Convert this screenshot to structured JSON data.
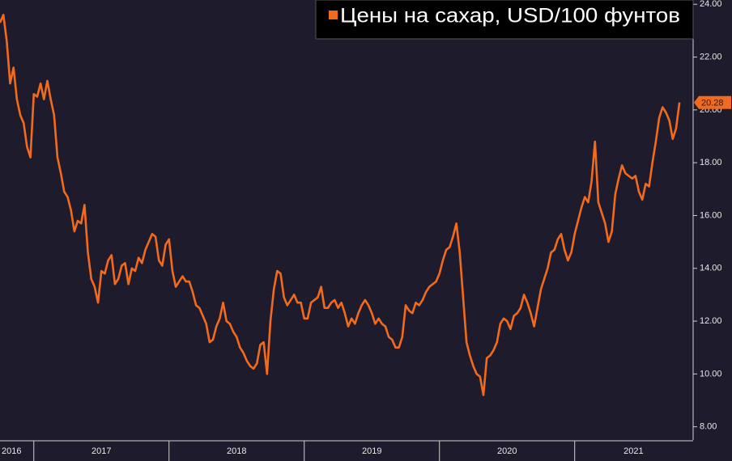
{
  "chart_data": {
    "type": "line",
    "series": [
      {
        "name": "Цены на сахар, USD/100 фунтов",
        "color": "#f26b1d",
        "x": [
          2016.75,
          2016.775,
          2016.8,
          2016.825,
          2016.85,
          2016.875,
          2016.9,
          2016.925,
          2016.95,
          2016.975,
          2017,
          2017.025,
          2017.05,
          2017.075,
          2017.1,
          2017.125,
          2017.15,
          2017.175,
          2017.2,
          2017.225,
          2017.25,
          2017.275,
          2017.3,
          2017.325,
          2017.35,
          2017.375,
          2017.4,
          2017.425,
          2017.45,
          2017.475,
          2017.5,
          2017.525,
          2017.55,
          2017.575,
          2017.6,
          2017.625,
          2017.65,
          2017.675,
          2017.7,
          2017.725,
          2017.75,
          2017.775,
          2017.8,
          2017.825,
          2017.85,
          2017.875,
          2017.9,
          2017.925,
          2017.95,
          2017.975,
          2018,
          2018.025,
          2018.05,
          2018.075,
          2018.1,
          2018.125,
          2018.15,
          2018.175,
          2018.2,
          2018.225,
          2018.25,
          2018.275,
          2018.3,
          2018.325,
          2018.35,
          2018.375,
          2018.4,
          2018.425,
          2018.45,
          2018.475,
          2018.5,
          2018.525,
          2018.55,
          2018.575,
          2018.6,
          2018.625,
          2018.65,
          2018.675,
          2018.7,
          2018.725,
          2018.75,
          2018.775,
          2018.8,
          2018.825,
          2018.85,
          2018.875,
          2018.9,
          2018.925,
          2018.95,
          2018.975,
          2019,
          2019.025,
          2019.05,
          2019.075,
          2019.1,
          2019.125,
          2019.15,
          2019.175,
          2019.2,
          2019.225,
          2019.25,
          2019.275,
          2019.3,
          2019.325,
          2019.35,
          2019.375,
          2019.4,
          2019.425,
          2019.45,
          2019.475,
          2019.5,
          2019.525,
          2019.55,
          2019.575,
          2019.6,
          2019.625,
          2019.65,
          2019.675,
          2019.7,
          2019.725,
          2019.75,
          2019.775,
          2019.8,
          2019.825,
          2019.85,
          2019.875,
          2019.9,
          2019.925,
          2019.95,
          2019.975,
          2020,
          2020.025,
          2020.05,
          2020.075,
          2020.1,
          2020.125,
          2020.15,
          2020.175,
          2020.2,
          2020.225,
          2020.25,
          2020.275,
          2020.3,
          2020.325,
          2020.35,
          2020.375,
          2020.4,
          2020.425,
          2020.45,
          2020.475,
          2020.5,
          2020.525,
          2020.55,
          2020.575,
          2020.6,
          2020.625,
          2020.65,
          2020.675,
          2020.7,
          2020.725,
          2020.75,
          2020.775,
          2020.8,
          2020.825,
          2020.85,
          2020.875,
          2020.9,
          2020.925,
          2020.95,
          2020.975,
          2021,
          2021.025,
          2021.05,
          2021.075,
          2021.1,
          2021.125,
          2021.15,
          2021.175,
          2021.2,
          2021.225,
          2021.25,
          2021.275,
          2021.3,
          2021.325,
          2021.35,
          2021.375,
          2021.4,
          2021.425,
          2021.45,
          2021.475,
          2021.5,
          2021.525,
          2021.55,
          2021.575,
          2021.6,
          2021.625,
          2021.65,
          2021.675,
          2021.7,
          2021.725,
          2021.75,
          2021.775
        ],
        "values": [
          23.3,
          23.6,
          22.6,
          21.0,
          21.6,
          20.4,
          19.8,
          19.5,
          18.6,
          18.2,
          20.6,
          20.5,
          21.0,
          20.4,
          21.1,
          20.4,
          19.8,
          18.2,
          17.6,
          16.9,
          16.7,
          16.2,
          15.4,
          15.8,
          15.7,
          16.4,
          14.6,
          13.6,
          13.3,
          12.7,
          13.9,
          13.8,
          14.3,
          14.5,
          13.4,
          13.6,
          14.1,
          14.2,
          13.4,
          14.0,
          13.9,
          14.4,
          14.2,
          14.7,
          15.0,
          15.3,
          15.2,
          14.3,
          14.1,
          14.9,
          15.1,
          13.9,
          13.3,
          13.5,
          13.7,
          13.5,
          13.5,
          13.1,
          12.6,
          12.5,
          12.2,
          11.9,
          11.2,
          11.3,
          11.8,
          12.1,
          12.7,
          12.0,
          11.9,
          11.6,
          11.4,
          11.0,
          10.8,
          10.5,
          10.3,
          10.2,
          10.4,
          11.1,
          11.2,
          10.0,
          12.0,
          13.2,
          13.9,
          13.8,
          12.9,
          12.6,
          12.8,
          13.0,
          12.7,
          12.7,
          12.1,
          12.1,
          12.7,
          12.8,
          12.9,
          13.3,
          12.5,
          12.5,
          12.7,
          12.8,
          12.5,
          12.7,
          12.3,
          11.8,
          12.1,
          11.9,
          12.3,
          12.6,
          12.8,
          12.6,
          12.3,
          11.9,
          12.1,
          11.9,
          11.8,
          11.4,
          11.3,
          11.0,
          11.0,
          11.4,
          12.6,
          12.4,
          12.3,
          12.7,
          12.6,
          12.8,
          13.1,
          13.3,
          13.4,
          13.5,
          13.8,
          14.3,
          14.7,
          14.8,
          15.2,
          15.7,
          14.6,
          12.9,
          11.2,
          10.7,
          10.3,
          10.0,
          9.9,
          9.2,
          10.6,
          10.7,
          10.9,
          11.2,
          11.9,
          12.1,
          12.0,
          11.7,
          12.2,
          12.3,
          12.5,
          13.0,
          12.7,
          12.3,
          11.8,
          12.5,
          13.2,
          13.6,
          14.0,
          14.6,
          14.7,
          15.1,
          15.3,
          14.7,
          14.3,
          14.6,
          15.3,
          15.8,
          16.3,
          16.7,
          16.5,
          17.3,
          18.8,
          16.5,
          16.1,
          15.7,
          15.0,
          15.4,
          16.8,
          17.4,
          17.9,
          17.6,
          17.5,
          17.4,
          17.5,
          16.9,
          16.6,
          17.2,
          17.1,
          18.0,
          18.8,
          19.7,
          20.1,
          19.9,
          19.6,
          18.9,
          19.3,
          20.28
        ]
      }
    ],
    "xlim": [
      2016.75,
      2021.87
    ],
    "xticks": [
      {
        "value": 2016.5,
        "label": "2016"
      },
      {
        "value": 2017.5,
        "label": "2017"
      },
      {
        "value": 2018.5,
        "label": "2018"
      },
      {
        "value": 2019.5,
        "label": "2019"
      },
      {
        "value": 2020.5,
        "label": "2020"
      },
      {
        "value": 2021.5,
        "label": "2021"
      }
    ],
    "ylim": [
      7.5,
      24.1
    ],
    "yticks": [
      {
        "value": 8,
        "label": "8.00"
      },
      {
        "value": 10,
        "label": "10.00"
      },
      {
        "value": 12,
        "label": "12.00"
      },
      {
        "value": 14,
        "label": "14.00"
      },
      {
        "value": 16,
        "label": "16.00"
      },
      {
        "value": 18,
        "label": "18.00"
      },
      {
        "value": 20,
        "label": "20.00"
      },
      {
        "value": 22,
        "label": "22.00"
      },
      {
        "value": 24,
        "label": "24.00"
      }
    ],
    "legend": "upper right"
  }
}
